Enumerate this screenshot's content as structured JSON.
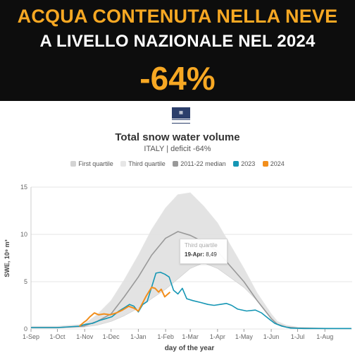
{
  "banner": {
    "line1": "ACQUA CONTENUTA NELLA NEVE",
    "line2": "A LIVELLO NAZIONALE NEL 2024",
    "percent": "-64%"
  },
  "logo": {
    "text": "cimafoundation"
  },
  "chart_data": {
    "type": "area",
    "title": "Total snow water volume",
    "subtitle": "ITALY | deficit -64%",
    "xlabel": "day of the year",
    "ylabel": "SWE, 10⁹ m³",
    "ylim": [
      0,
      15
    ],
    "yticks": [
      0,
      5,
      10,
      15
    ],
    "x_ticks": [
      "1-Sep",
      "1-Oct",
      "1-Nov",
      "1-Dec",
      "1-Jan",
      "1-Feb",
      "1-Mar",
      "1-Apr",
      "1-May",
      "1-Jun",
      "1-Jul",
      "1-Aug"
    ],
    "x_tick_days": [
      0,
      30,
      61,
      91,
      122,
      153,
      181,
      212,
      242,
      273,
      303,
      334
    ],
    "legend_position": "top",
    "grid": "horizontal",
    "series": [
      {
        "name": "First quartile",
        "color": "#d3d3d3",
        "x": [
          0,
          30,
          60,
          75,
          91,
          106,
          122,
          137,
          153,
          167,
          181,
          196,
          212,
          227,
          242,
          257,
          273,
          280,
          290,
          303,
          334,
          364
        ],
        "y": [
          0.1,
          0.1,
          0.2,
          0.4,
          0.8,
          1.4,
          2.2,
          3.2,
          4.2,
          5.3,
          6.4,
          7.0,
          6.4,
          5.4,
          4.4,
          3.0,
          1.2,
          0.5,
          0.2,
          0.1,
          0.05,
          0.05
        ]
      },
      {
        "name": "Third quartile",
        "color": "#e6e6e6",
        "x": [
          0,
          30,
          60,
          75,
          91,
          106,
          122,
          137,
          153,
          167,
          181,
          196,
          212,
          227,
          242,
          257,
          273,
          280,
          290,
          303,
          334,
          364
        ],
        "y": [
          0.3,
          0.3,
          0.5,
          1.5,
          3.0,
          5.2,
          7.8,
          10.5,
          12.8,
          14.2,
          14.4,
          13.0,
          11.2,
          8.8,
          6.4,
          3.8,
          1.6,
          0.8,
          0.4,
          0.2,
          0.1,
          0.05
        ]
      },
      {
        "name": "2011-22 median",
        "color": "#999999",
        "x": [
          0,
          30,
          60,
          75,
          91,
          106,
          122,
          137,
          153,
          167,
          181,
          196,
          212,
          227,
          242,
          257,
          273,
          280,
          290,
          303,
          334,
          364
        ],
        "y": [
          0.15,
          0.15,
          0.3,
          0.8,
          1.6,
          3.4,
          5.5,
          7.8,
          9.6,
          10.3,
          9.9,
          9.2,
          8.2,
          6.6,
          5.0,
          3.0,
          1.1,
          0.5,
          0.2,
          0.1,
          0.05,
          0.05
        ]
      },
      {
        "name": "2023",
        "color": "#1596b4",
        "x": [
          0,
          30,
          55,
          62,
          70,
          78,
          85,
          92,
          100,
          107,
          112,
          117,
          122,
          127,
          132,
          137,
          142,
          147,
          152,
          157,
          162,
          167,
          172,
          177,
          184,
          193,
          201,
          208,
          215,
          222,
          228,
          235,
          245,
          255,
          262,
          270,
          277,
          285,
          295,
          310,
          330,
          364
        ],
        "y": [
          0.15,
          0.15,
          0.3,
          0.5,
          0.6,
          0.9,
          1.1,
          1.3,
          1.9,
          2.3,
          2.6,
          2.4,
          1.8,
          2.6,
          2.9,
          4.4,
          5.9,
          6.0,
          5.8,
          5.5,
          4.1,
          3.7,
          4.3,
          3.2,
          3.0,
          2.8,
          2.6,
          2.5,
          2.6,
          2.7,
          2.5,
          2.1,
          1.9,
          2.0,
          1.7,
          1.1,
          0.6,
          0.3,
          0.1,
          0.05,
          0.05,
          0.05
        ]
      },
      {
        "name": "2024",
        "color": "#f28e1c",
        "x": [
          55,
          60,
          63,
          67,
          72,
          77,
          83,
          90,
          97,
          104,
          111,
          117,
          122,
          126,
          131,
          137,
          141,
          145,
          148,
          152,
          158
        ],
        "y": [
          0.3,
          0.7,
          0.9,
          1.3,
          1.7,
          1.5,
          1.6,
          1.5,
          1.7,
          2.0,
          2.4,
          2.2,
          1.9,
          2.6,
          3.5,
          4.4,
          4.3,
          3.9,
          4.2,
          3.4,
          3.9
        ]
      }
    ],
    "tooltip": {
      "series": "Third quartile",
      "date": "19-Apr:",
      "value": "8,49"
    }
  }
}
